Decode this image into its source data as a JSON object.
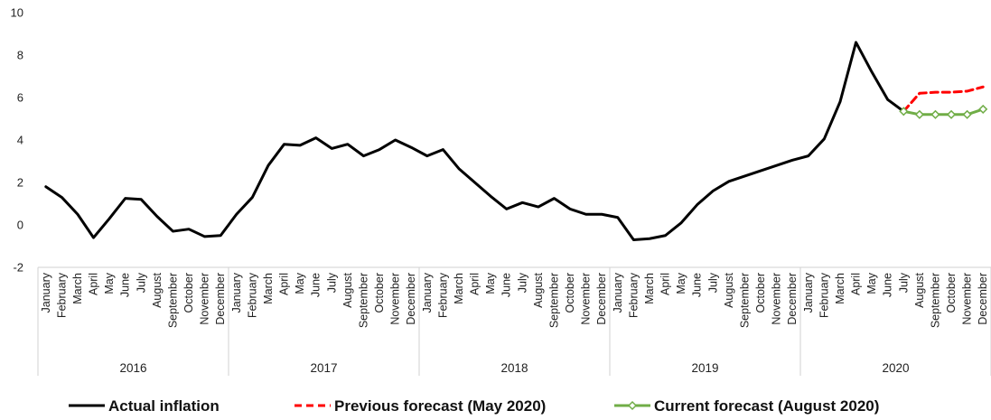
{
  "chart_data": {
    "type": "line",
    "title": "",
    "xlabel": "",
    "ylabel": "",
    "ylim": [
      -2,
      10
    ],
    "yticks": [
      -2,
      0,
      2,
      4,
      6,
      8,
      10
    ],
    "grid": false,
    "legend_position": "bottom",
    "x_months": [
      "January",
      "February",
      "March",
      "April",
      "May",
      "June",
      "July",
      "August",
      "September",
      "October",
      "November",
      "December"
    ],
    "x_years": [
      "2016",
      "2017",
      "2018",
      "2019",
      "2020"
    ],
    "series": [
      {
        "name": "Actual inflation",
        "color": "#000000",
        "style": "solid",
        "marker": "none",
        "start_index": 0,
        "values": [
          1.8,
          1.3,
          0.5,
          -0.6,
          0.3,
          1.25,
          1.2,
          0.4,
          -0.3,
          -0.2,
          -0.55,
          -0.5,
          0.5,
          1.3,
          2.8,
          3.8,
          3.75,
          4.1,
          3.6,
          3.8,
          3.25,
          3.55,
          4.0,
          3.65,
          3.25,
          3.55,
          2.65,
          2.0,
          1.35,
          0.75,
          1.05,
          0.85,
          1.25,
          0.75,
          0.5,
          0.5,
          0.35,
          -0.7,
          -0.65,
          -0.5,
          0.1,
          0.95,
          1.6,
          2.05,
          2.3,
          2.55,
          2.8,
          3.05,
          3.25,
          4.05,
          5.8,
          8.6,
          7.2,
          5.9,
          5.35
        ]
      },
      {
        "name": "Previous forecast (May 2020)",
        "color": "#ff0000",
        "style": "dashed",
        "marker": "none",
        "start_index": 54,
        "values": [
          5.35,
          6.2,
          6.25,
          6.25,
          6.3,
          6.5
        ]
      },
      {
        "name": "Current forecast (August 2020)",
        "color": "#70ad47",
        "style": "solid",
        "marker": "diamond",
        "start_index": 54,
        "values": [
          5.35,
          5.2,
          5.2,
          5.2,
          5.2,
          5.45
        ]
      }
    ]
  }
}
